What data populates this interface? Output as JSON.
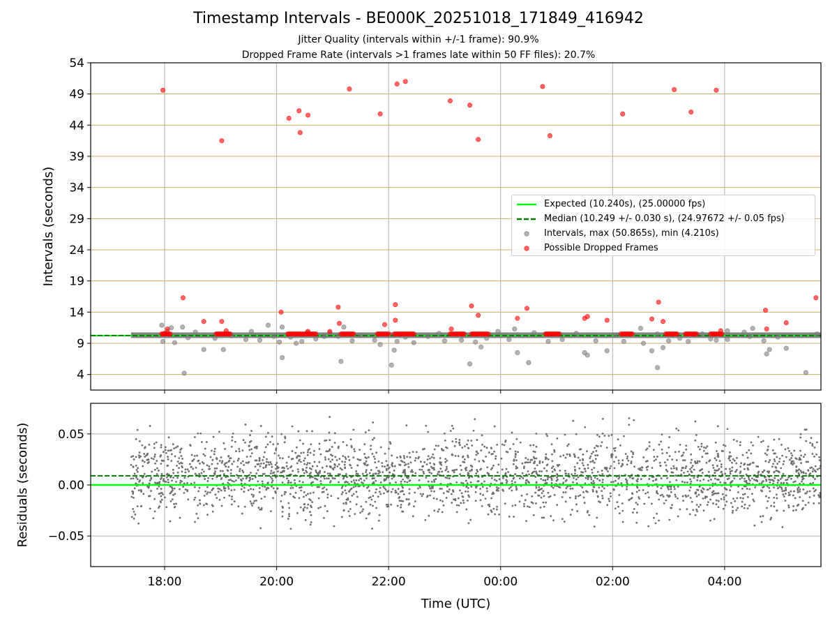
{
  "chart_data": [
    {
      "type": "scatter",
      "title": "Timestamp Intervals - BE000K_20251018_171849_416942",
      "subtitle_lines": [
        "Jitter Quality (intervals within +/-1 frame): 90.9%",
        "Dropped Frame Rate (intervals >1 frames late within 50 FF files): 20.7%"
      ],
      "ylabel": "Intervals (seconds)",
      "ylim": [
        1.5,
        54
      ],
      "yticks": [
        4,
        9,
        14,
        19,
        24,
        29,
        34,
        39,
        44,
        49,
        54
      ],
      "x_tick_labels": [
        "18:00",
        "20:00",
        "22:00",
        "00:00",
        "02:00",
        "04:00"
      ],
      "x_tick_hours": [
        18,
        20,
        22,
        24,
        26,
        28
      ],
      "xlim_hours": [
        16.68,
        29.72
      ],
      "grid": true,
      "legend_position": "center-right",
      "legend": [
        "Expected (10.240s), (25.00000 fps)",
        "Median (10.249 +/- 0.030 s), (24.97672 +/- 0.05 fps)",
        "Intervals, max (50.865s), min (4.210s)",
        "Possible Dropped Frames"
      ],
      "expected_line": 10.24,
      "median_line": 10.249,
      "data_start_hours": 17.4,
      "data_end_hours": 29.72,
      "interval_points": [
        {
          "t": 17.95,
          "y": 11.9
        },
        {
          "t": 17.97,
          "y": 9.3
        },
        {
          "t": 18.05,
          "y": 10.9
        },
        {
          "t": 18.12,
          "y": 11.5
        },
        {
          "t": 18.18,
          "y": 9.1
        },
        {
          "t": 18.32,
          "y": 11.6
        },
        {
          "t": 18.35,
          "y": 4.2
        },
        {
          "t": 18.42,
          "y": 9.9
        },
        {
          "t": 18.55,
          "y": 10.8
        },
        {
          "t": 18.7,
          "y": 8.0
        },
        {
          "t": 18.9,
          "y": 9.8
        },
        {
          "t": 19.05,
          "y": 8.0
        },
        {
          "t": 19.2,
          "y": 10.2
        },
        {
          "t": 19.45,
          "y": 9.6
        },
        {
          "t": 19.55,
          "y": 10.9
        },
        {
          "t": 19.7,
          "y": 9.5
        },
        {
          "t": 19.85,
          "y": 11.9
        },
        {
          "t": 19.95,
          "y": 10.1
        },
        {
          "t": 20.05,
          "y": 9.2
        },
        {
          "t": 20.1,
          "y": 11.6
        },
        {
          "t": 20.1,
          "y": 6.7
        },
        {
          "t": 20.25,
          "y": 10.0
        },
        {
          "t": 20.35,
          "y": 9.0
        },
        {
          "t": 20.45,
          "y": 9.3
        },
        {
          "t": 20.55,
          "y": 10.8
        },
        {
          "t": 20.7,
          "y": 9.7
        },
        {
          "t": 20.85,
          "y": 10.1
        },
        {
          "t": 20.95,
          "y": 10.7
        },
        {
          "t": 21.1,
          "y": 10.1
        },
        {
          "t": 21.15,
          "y": 6.1
        },
        {
          "t": 21.2,
          "y": 11.6
        },
        {
          "t": 21.35,
          "y": 9.4
        },
        {
          "t": 21.5,
          "y": 10.3
        },
        {
          "t": 21.75,
          "y": 9.5
        },
        {
          "t": 21.85,
          "y": 8.8
        },
        {
          "t": 22.05,
          "y": 5.5
        },
        {
          "t": 22.1,
          "y": 7.9
        },
        {
          "t": 22.15,
          "y": 9.3
        },
        {
          "t": 22.3,
          "y": 10.0
        },
        {
          "t": 22.45,
          "y": 9.1
        },
        {
          "t": 22.7,
          "y": 10.1
        },
        {
          "t": 22.9,
          "y": 10.6
        },
        {
          "t": 23.0,
          "y": 9.4
        },
        {
          "t": 23.2,
          "y": 10.3
        },
        {
          "t": 23.3,
          "y": 9.5
        },
        {
          "t": 23.45,
          "y": 5.7
        },
        {
          "t": 23.55,
          "y": 9.2
        },
        {
          "t": 23.65,
          "y": 8.4
        },
        {
          "t": 23.75,
          "y": 9.8
        },
        {
          "t": 23.95,
          "y": 10.9
        },
        {
          "t": 24.15,
          "y": 9.6
        },
        {
          "t": 24.25,
          "y": 11.3
        },
        {
          "t": 24.3,
          "y": 7.5
        },
        {
          "t": 24.5,
          "y": 5.9
        },
        {
          "t": 24.6,
          "y": 10.7
        },
        {
          "t": 24.85,
          "y": 9.3
        },
        {
          "t": 25.1,
          "y": 9.6
        },
        {
          "t": 25.35,
          "y": 10.6
        },
        {
          "t": 25.5,
          "y": 7.5
        },
        {
          "t": 25.55,
          "y": 7.1
        },
        {
          "t": 25.7,
          "y": 9.4
        },
        {
          "t": 25.9,
          "y": 7.8
        },
        {
          "t": 26.05,
          "y": 10.3
        },
        {
          "t": 26.2,
          "y": 9.3
        },
        {
          "t": 26.5,
          "y": 11.4
        },
        {
          "t": 26.55,
          "y": 9.0
        },
        {
          "t": 26.7,
          "y": 7.8
        },
        {
          "t": 26.8,
          "y": 10.5
        },
        {
          "t": 26.8,
          "y": 5.1
        },
        {
          "t": 26.9,
          "y": 8.3
        },
        {
          "t": 27.0,
          "y": 9.4
        },
        {
          "t": 27.2,
          "y": 9.8
        },
        {
          "t": 27.35,
          "y": 9.3
        },
        {
          "t": 27.6,
          "y": 10.5
        },
        {
          "t": 27.75,
          "y": 9.7
        },
        {
          "t": 27.85,
          "y": 9.5
        },
        {
          "t": 28.05,
          "y": 11.0
        },
        {
          "t": 28.05,
          "y": 9.6
        },
        {
          "t": 28.35,
          "y": 10.8
        },
        {
          "t": 28.45,
          "y": 10.1
        },
        {
          "t": 28.5,
          "y": 11.4
        },
        {
          "t": 28.7,
          "y": 9.4
        },
        {
          "t": 28.75,
          "y": 7.3
        },
        {
          "t": 28.8,
          "y": 8.0
        },
        {
          "t": 28.95,
          "y": 10.0
        },
        {
          "t": 29.1,
          "y": 8.2
        },
        {
          "t": 29.45,
          "y": 4.3
        },
        {
          "t": 29.65,
          "y": 10.5
        }
      ],
      "dropped_frame_points": [
        {
          "t": 17.97,
          "y": 49.6
        },
        {
          "t": 18.0,
          "y": 10.6
        },
        {
          "t": 18.05,
          "y": 11.3
        },
        {
          "t": 18.33,
          "y": 16.3
        },
        {
          "t": 18.7,
          "y": 12.5
        },
        {
          "t": 19.02,
          "y": 41.5
        },
        {
          "t": 19.02,
          "y": 12.5
        },
        {
          "t": 19.1,
          "y": 11.0
        },
        {
          "t": 20.08,
          "y": 14.0
        },
        {
          "t": 20.22,
          "y": 45.1
        },
        {
          "t": 20.4,
          "y": 46.3
        },
        {
          "t": 20.42,
          "y": 42.8
        },
        {
          "t": 20.56,
          "y": 45.6
        },
        {
          "t": 20.56,
          "y": 10.9
        },
        {
          "t": 20.95,
          "y": 10.9
        },
        {
          "t": 21.1,
          "y": 14.8
        },
        {
          "t": 21.12,
          "y": 12.2
        },
        {
          "t": 21.3,
          "y": 49.8
        },
        {
          "t": 21.85,
          "y": 45.8
        },
        {
          "t": 21.93,
          "y": 12.0
        },
        {
          "t": 22.12,
          "y": 15.2
        },
        {
          "t": 22.12,
          "y": 12.7
        },
        {
          "t": 22.15,
          "y": 50.6
        },
        {
          "t": 22.3,
          "y": 51.0
        },
        {
          "t": 23.1,
          "y": 47.9
        },
        {
          "t": 23.12,
          "y": 11.3
        },
        {
          "t": 23.45,
          "y": 47.2
        },
        {
          "t": 23.48,
          "y": 15.0
        },
        {
          "t": 23.6,
          "y": 41.7
        },
        {
          "t": 23.6,
          "y": 13.5
        },
        {
          "t": 24.3,
          "y": 13.0
        },
        {
          "t": 24.47,
          "y": 14.6
        },
        {
          "t": 24.75,
          "y": 50.2
        },
        {
          "t": 24.88,
          "y": 42.3
        },
        {
          "t": 25.5,
          "y": 13.0
        },
        {
          "t": 25.55,
          "y": 13.3
        },
        {
          "t": 25.9,
          "y": 12.7
        },
        {
          "t": 26.18,
          "y": 45.8
        },
        {
          "t": 26.7,
          "y": 12.9
        },
        {
          "t": 26.82,
          "y": 15.6
        },
        {
          "t": 26.9,
          "y": 12.5
        },
        {
          "t": 27.1,
          "y": 49.7
        },
        {
          "t": 27.4,
          "y": 46.1
        },
        {
          "t": 27.85,
          "y": 49.6
        },
        {
          "t": 27.93,
          "y": 11.0
        },
        {
          "t": 28.73,
          "y": 14.3
        },
        {
          "t": 28.75,
          "y": 11.3
        },
        {
          "t": 29.1,
          "y": 12.3
        },
        {
          "t": 29.63,
          "y": 16.3
        }
      ],
      "dropped_frame_clusters_at_10_5": [
        {
          "t_start": 17.95,
          "t_end": 18.12
        },
        {
          "t_start": 18.92,
          "t_end": 19.18
        },
        {
          "t_start": 20.2,
          "t_end": 20.72
        },
        {
          "t_start": 21.15,
          "t_end": 21.38
        },
        {
          "t_start": 21.8,
          "t_end": 22.0
        },
        {
          "t_start": 22.1,
          "t_end": 22.45
        },
        {
          "t_start": 23.1,
          "t_end": 23.35
        },
        {
          "t_start": 23.48,
          "t_end": 23.8
        },
        {
          "t_start": 24.8,
          "t_end": 25.05
        },
        {
          "t_start": 26.15,
          "t_end": 26.35
        },
        {
          "t_start": 26.95,
          "t_end": 27.15
        },
        {
          "t_start": 27.3,
          "t_end": 27.5
        },
        {
          "t_start": 27.75,
          "t_end": 27.95
        }
      ]
    },
    {
      "type": "scatter",
      "ylabel": "Residuals (seconds)",
      "xlabel": "Time (UTC)",
      "ylim": [
        -0.08,
        0.08
      ],
      "yticks": [
        -0.05,
        0.0,
        0.05
      ],
      "ytick_labels": [
        "−0.05",
        "0.00",
        "0.05"
      ],
      "x_tick_labels": [
        "18:00",
        "20:00",
        "22:00",
        "00:00",
        "02:00",
        "04:00"
      ],
      "x_tick_hours": [
        18,
        20,
        22,
        24,
        26,
        28
      ],
      "xlim_hours": [
        16.68,
        29.72
      ],
      "grid": true,
      "expected_line": 0.0,
      "median_line": 0.009,
      "residual_distribution": {
        "t_start": 17.4,
        "t_end": 29.72,
        "center": 0.009,
        "spread": 0.02,
        "point_count": 2600,
        "min": -0.072,
        "max": 0.08
      }
    }
  ]
}
